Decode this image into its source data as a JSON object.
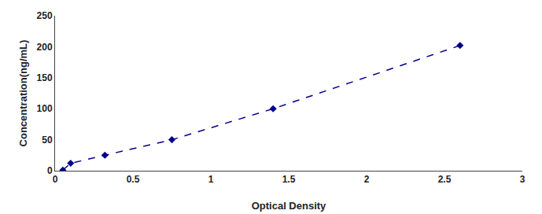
{
  "chart_data": {
    "type": "line",
    "x": [
      0.05,
      0.1,
      0.32,
      0.75,
      1.4,
      2.6
    ],
    "values": [
      1,
      12,
      25,
      50,
      100,
      202
    ],
    "color": "#00008B",
    "line_style": "dashed",
    "marker": "diamond",
    "xlabel": "Optical Density",
    "ylabel": "Concentration(ng/mL)",
    "xlim": [
      0,
      3
    ],
    "ylim": [
      0,
      250
    ],
    "xticks": [
      0,
      0.5,
      1,
      1.5,
      2,
      2.5,
      3
    ],
    "yticks": [
      0,
      50,
      100,
      150,
      200,
      250
    ],
    "grid": false
  }
}
